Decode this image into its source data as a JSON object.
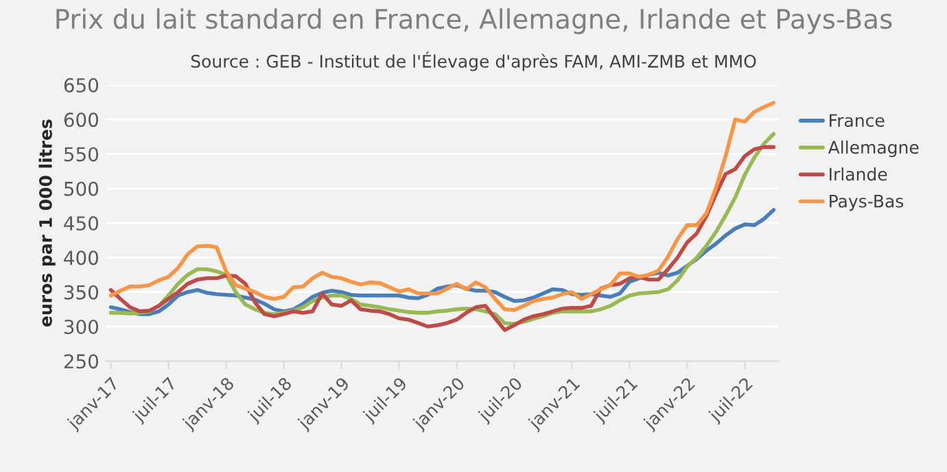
{
  "chart_data": {
    "type": "line",
    "title": "Prix du lait standard en France, Allemagne, Irlande et Pays-Bas",
    "subtitle": "Source : GEB - Institut de l'Élevage d'après FAM, AMI-ZMB et MMO",
    "ylabel": "euros par 1 000 litres",
    "categories": [
      "janv-17",
      null,
      null,
      null,
      null,
      null,
      "juil-17",
      null,
      null,
      null,
      null,
      null,
      "janv-18",
      null,
      null,
      null,
      null,
      null,
      "juil-18",
      null,
      null,
      null,
      null,
      null,
      "janv-19",
      null,
      null,
      null,
      null,
      null,
      "juil-19",
      null,
      null,
      null,
      null,
      null,
      "janv-20",
      null,
      null,
      null,
      null,
      null,
      "juil-20",
      null,
      null,
      null,
      null,
      null,
      "janv-21",
      null,
      null,
      null,
      null,
      null,
      "juil-21",
      null,
      null,
      null,
      null,
      null,
      "janv-22",
      null,
      null,
      null,
      null,
      null,
      "juil-22",
      null,
      null,
      null
    ],
    "ylim": [
      250,
      650
    ],
    "yticks": [
      250,
      300,
      350,
      400,
      450,
      500,
      550,
      600,
      650
    ],
    "grid": "y",
    "legend": "right",
    "marker": "none",
    "line_style": "solid",
    "series": [
      {
        "name": "France",
        "color": "#4a7ebb",
        "values": [
          328,
          325,
          321,
          318,
          318,
          322,
          332,
          345,
          350,
          353,
          349,
          347,
          346,
          345,
          342,
          339,
          333,
          325,
          322,
          325,
          333,
          343,
          349,
          352,
          350,
          346,
          345,
          345,
          345,
          345,
          345,
          342,
          341,
          346,
          355,
          358,
          360,
          355,
          352,
          352,
          350,
          343,
          337,
          338,
          342,
          348,
          354,
          353,
          347,
          346,
          347,
          345,
          343,
          348,
          365,
          370,
          375,
          378,
          374,
          378,
          388,
          398,
          410,
          420,
          432,
          442,
          448,
          447,
          456,
          469
        ]
      },
      {
        "name": "Allemagne",
        "color": "#98b954",
        "values": [
          320,
          320,
          319,
          320,
          322,
          330,
          345,
          362,
          375,
          383,
          383,
          380,
          375,
          350,
          332,
          325,
          320,
          318,
          320,
          323,
          328,
          337,
          342,
          345,
          345,
          340,
          332,
          330,
          328,
          325,
          323,
          321,
          320,
          320,
          322,
          323,
          325,
          326,
          325,
          322,
          318,
          305,
          304,
          307,
          311,
          315,
          320,
          322,
          322,
          322,
          322,
          325,
          330,
          338,
          345,
          348,
          349,
          350,
          354,
          367,
          387,
          400,
          417,
          437,
          461,
          487,
          520,
          545,
          565,
          579
        ]
      },
      {
        "name": "Irlande",
        "color": "#be4b48",
        "values": [
          353,
          340,
          328,
          322,
          323,
          330,
          340,
          350,
          362,
          368,
          370,
          370,
          374,
          373,
          362,
          335,
          318,
          315,
          318,
          322,
          320,
          322,
          348,
          332,
          330,
          338,
          325,
          323,
          322,
          318,
          312,
          310,
          305,
          300,
          302,
          305,
          310,
          320,
          328,
          330,
          312,
          295,
          302,
          310,
          315,
          318,
          322,
          326,
          327,
          327,
          330,
          355,
          360,
          362,
          370,
          372,
          368,
          368,
          383,
          400,
          422,
          435,
          460,
          492,
          521,
          528,
          547,
          557,
          560,
          560
        ]
      },
      {
        "name": "Pays-Bas",
        "color": "#f79646",
        "values": [
          345,
          352,
          358,
          358,
          360,
          367,
          372,
          385,
          405,
          416,
          417,
          415,
          380,
          360,
          355,
          350,
          343,
          340,
          343,
          357,
          358,
          370,
          378,
          372,
          370,
          365,
          361,
          364,
          363,
          357,
          351,
          354,
          348,
          348,
          348,
          355,
          362,
          354,
          364,
          357,
          340,
          325,
          324,
          330,
          337,
          340,
          342,
          347,
          350,
          340,
          347,
          354,
          360,
          377,
          377,
          372,
          375,
          381,
          401,
          427,
          447,
          447,
          464,
          501,
          547,
          600,
          597,
          611,
          618,
          624
        ]
      }
    ]
  }
}
